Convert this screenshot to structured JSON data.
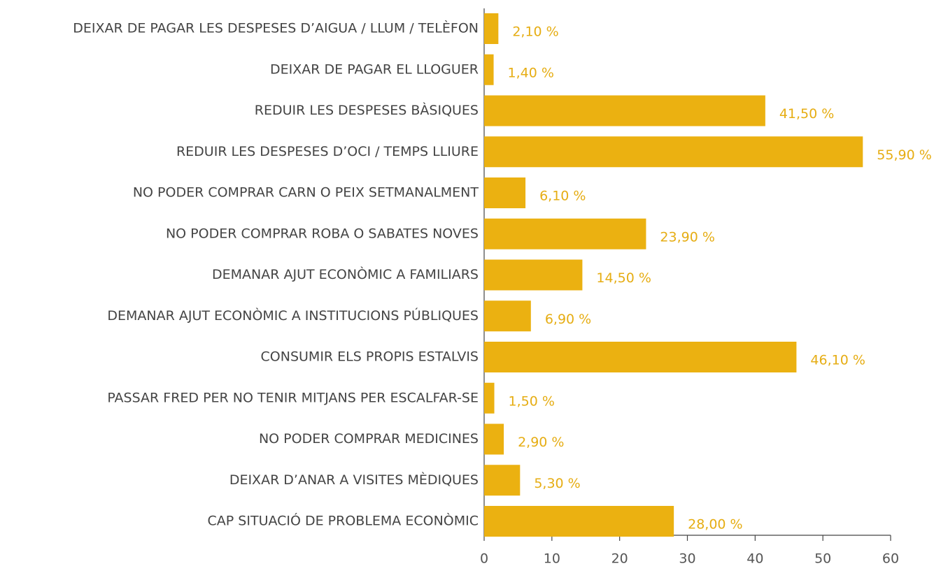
{
  "chart_data": {
    "type": "barh",
    "categories": [
      "DEIXAR DE PAGAR LES DESPESES D’AIGUA / LLUM / TELÈFON",
      "DEIXAR DE PAGAR EL LLOGUER",
      "REDUIR LES DESPESES BÀSIQUES",
      "REDUIR LES DESPESES D’OCI / TEMPS LLIURE",
      "NO PODER COMPRAR CARN O PEIX SETMANALMENT",
      "NO PODER COMPRAR ROBA O SABATES NOVES",
      "DEMANAR AJUT ECONÒMIC A FAMILIARS",
      "DEMANAR AJUT ECONÒMIC A INSTITUCIONS PÚBLIQUES",
      "CONSUMIR ELS PROPIS ESTALVIS",
      "PASSAR FRED PER NO TENIR MITJANS PER ESCALFAR-SE",
      "NO PODER COMPRAR MEDICINES",
      "DEIXAR D’ANAR A VISITES MÈDIQUES",
      "CAP SITUACIÓ DE PROBLEMA ECONÒMIC"
    ],
    "values": [
      2.1,
      1.4,
      41.5,
      55.9,
      6.1,
      23.9,
      14.5,
      6.9,
      46.1,
      1.5,
      2.9,
      5.3,
      28.0
    ],
    "value_labels": [
      "2,10 %",
      "1,40 %",
      "41,50 %",
      "55,90 %",
      "6,10 %",
      "23,90 %",
      "14,50 %",
      "6,90 %",
      "46,10 %",
      "1,50 %",
      "2,90 %",
      "5,30 %",
      "28,00 %"
    ],
    "color": "#ebb111",
    "xlim": [
      0,
      60
    ],
    "xticks": [
      0,
      10,
      20,
      30,
      40,
      50,
      60
    ]
  }
}
